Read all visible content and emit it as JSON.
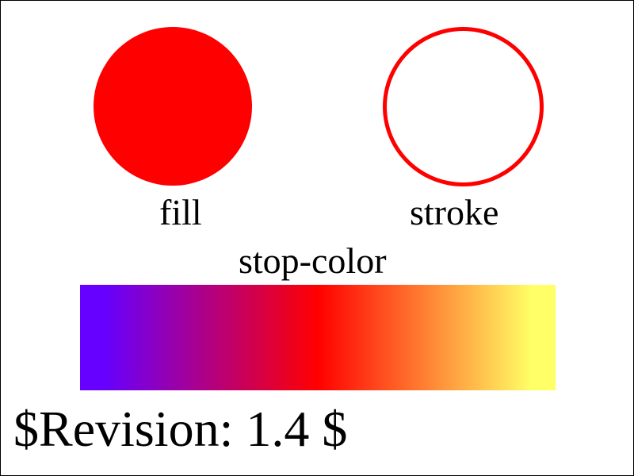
{
  "fill_demo": {
    "label": "fill",
    "color": "#ff0000"
  },
  "stroke_demo": {
    "label": "stroke",
    "color": "#ff0000"
  },
  "gradient_demo": {
    "label": "stop-color",
    "stops": [
      "#6600ff",
      "#ff0000",
      "#ffff66"
    ]
  },
  "footer": {
    "revision": "$Revision: 1.4 $"
  }
}
